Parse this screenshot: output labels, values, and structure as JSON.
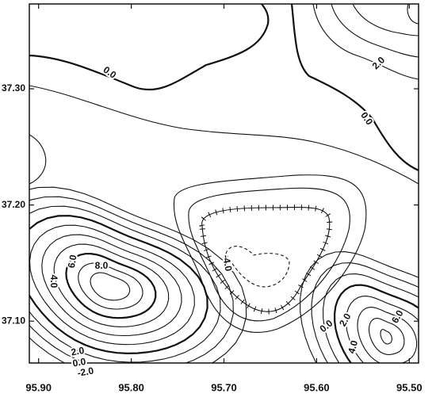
{
  "chart_data": {
    "type": "contour",
    "xlim": [
      95.91,
      95.49
    ],
    "ylim": [
      37.064,
      37.373
    ],
    "xticks": [
      {
        "value": 95.9,
        "label": "95.90"
      },
      {
        "value": 95.8,
        "label": "95.80"
      },
      {
        "value": 95.7,
        "label": "95.70"
      },
      {
        "value": 95.6,
        "label": "95.60"
      },
      {
        "value": 95.5,
        "label": "95.50"
      }
    ],
    "yticks": [
      {
        "value": 37.1,
        "label": "37.10"
      },
      {
        "value": 37.2,
        "label": "37.20"
      },
      {
        "value": 37.3,
        "label": "37.30"
      }
    ],
    "contour_labels": [
      {
        "value": 0,
        "label": "0.0"
      },
      {
        "value": 2,
        "label": "2.0"
      },
      {
        "value": 0,
        "label": "0.0"
      },
      {
        "value": -4,
        "label": "-4.0"
      },
      {
        "value": 8,
        "label": "8.0"
      },
      {
        "value": 6,
        "label": "6.0"
      },
      {
        "value": 4,
        "label": "4.0"
      },
      {
        "value": 2,
        "label": "2.0"
      },
      {
        "value": 0,
        "label": "0.0"
      },
      {
        "value": -2,
        "label": "-2.0"
      },
      {
        "value": 0,
        "label": "0.0"
      },
      {
        "value": 2,
        "label": "2.0"
      },
      {
        "value": 4,
        "label": "4.0"
      },
      {
        "value": 6,
        "label": "6.0"
      }
    ]
  }
}
